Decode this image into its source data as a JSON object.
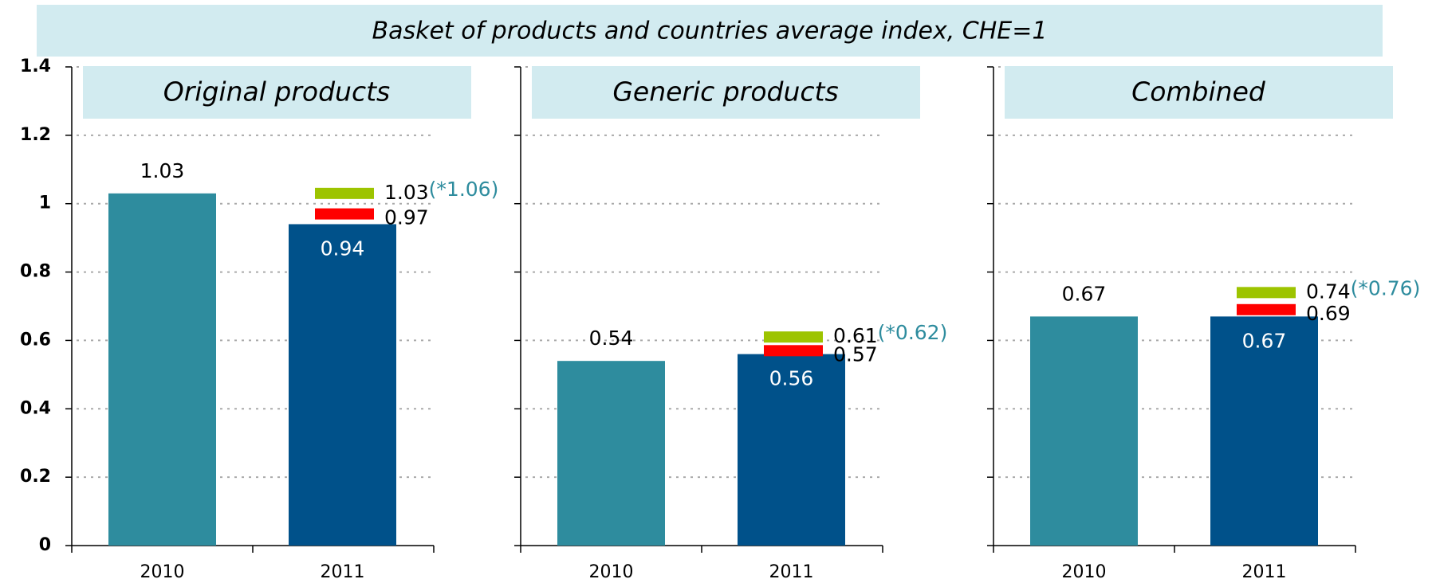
{
  "title": "Basket of products and countries average index, CHE=1",
  "chart_data": [
    {
      "type": "bar",
      "title": "Original products",
      "categories": [
        "2010",
        "2011"
      ],
      "values": [
        1.03,
        0.94
      ],
      "colors": [
        "#2e8c9e",
        "#00518a"
      ],
      "ylim": [
        0,
        1.4
      ],
      "yticks": [
        0,
        0.2,
        0.4,
        0.6,
        0.8,
        1,
        1.2,
        1.4
      ],
      "ytick_labels": true,
      "grid": true,
      "markers": [
        {
          "value": 1.03,
          "color": "#9dc400",
          "note": "(*1.06)"
        },
        {
          "value": 0.97,
          "color": "#ff0000"
        }
      ]
    },
    {
      "type": "bar",
      "title": "Generic products",
      "categories": [
        "2010",
        "2011"
      ],
      "values": [
        0.54,
        0.56
      ],
      "colors": [
        "#2e8c9e",
        "#00518a"
      ],
      "ylim": [
        0,
        1.4
      ],
      "yticks": [
        0,
        0.2,
        0.4,
        0.6,
        0.8,
        1,
        1.2,
        1.4
      ],
      "ytick_labels": false,
      "grid": true,
      "markers": [
        {
          "value": 0.61,
          "color": "#9dc400",
          "note": "(*0.62)"
        },
        {
          "value": 0.57,
          "color": "#ff0000"
        }
      ]
    },
    {
      "type": "bar",
      "title": "Combined",
      "categories": [
        "2010",
        "2011"
      ],
      "values": [
        0.67,
        0.67
      ],
      "colors": [
        "#2e8c9e",
        "#00518a"
      ],
      "ylim": [
        0,
        1.4
      ],
      "yticks": [
        0,
        0.2,
        0.4,
        0.6,
        0.8,
        1,
        1.2,
        1.4
      ],
      "ytick_labels": false,
      "grid": true,
      "markers": [
        {
          "value": 0.74,
          "color": "#9dc400",
          "note": "(*0.76)"
        },
        {
          "value": 0.69,
          "color": "#ff0000"
        }
      ]
    }
  ]
}
